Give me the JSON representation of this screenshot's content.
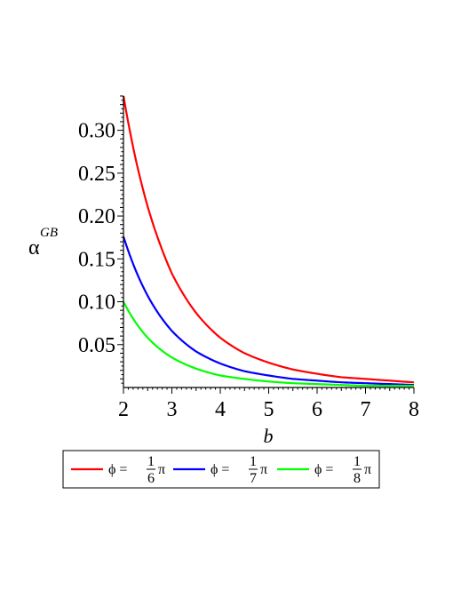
{
  "chart_data": {
    "type": "line",
    "xlabel": "b",
    "ylabel": "α",
    "ylabel_superscript": "GB",
    "xlim": [
      2,
      8
    ],
    "ylim": [
      0,
      0.34
    ],
    "x_ticks": [
      2,
      3,
      4,
      5,
      6,
      7,
      8
    ],
    "x_tick_labels": [
      "2",
      "3",
      "4",
      "5",
      "6",
      "7",
      "8"
    ],
    "y_ticks": [
      0.05,
      0.1,
      0.15,
      0.2,
      0.25,
      0.3
    ],
    "y_tick_labels": [
      "0.05",
      "0.10",
      "0.15",
      "0.20",
      "0.25",
      "0.30"
    ],
    "grid": false,
    "legend_position": "bottom",
    "series": [
      {
        "name": "ϕ = 1/6 π",
        "legend": {
          "lhs": "ϕ =",
          "num": "1",
          "den": "6",
          "rhs": "π"
        },
        "color": "#ff0000",
        "x": [
          2.0,
          2.25,
          2.5,
          2.75,
          3.0,
          3.5,
          4.0,
          4.5,
          5.0,
          5.5,
          6.0,
          6.5,
          7.0,
          7.5,
          8.0
        ],
        "y": [
          0.34,
          0.267,
          0.211,
          0.168,
          0.133,
          0.087,
          0.058,
          0.04,
          0.029,
          0.021,
          0.016,
          0.012,
          0.01,
          0.008,
          0.006
        ]
      },
      {
        "name": "ϕ = 1/7 π",
        "legend": {
          "lhs": "ϕ =",
          "num": "1",
          "den": "7",
          "rhs": "π"
        },
        "color": "#0000ff",
        "x": [
          2.0,
          2.25,
          2.5,
          2.75,
          3.0,
          3.5,
          4.0,
          4.5,
          5.0,
          5.5,
          6.0,
          6.5,
          7.0,
          7.5,
          8.0
        ],
        "y": [
          0.176,
          0.137,
          0.107,
          0.084,
          0.066,
          0.042,
          0.028,
          0.019,
          0.014,
          0.01,
          0.008,
          0.006,
          0.005,
          0.004,
          0.003
        ]
      },
      {
        "name": "ϕ = 1/8 π",
        "legend": {
          "lhs": "ϕ =",
          "num": "1",
          "den": "8",
          "rhs": "π"
        },
        "color": "#00ff00",
        "x": [
          2.0,
          2.25,
          2.5,
          2.75,
          3.0,
          3.5,
          4.0,
          4.5,
          5.0,
          5.5,
          6.0,
          6.5,
          7.0,
          7.5,
          8.0
        ],
        "y": [
          0.1,
          0.076,
          0.058,
          0.045,
          0.035,
          0.022,
          0.014,
          0.01,
          0.007,
          0.005,
          0.004,
          0.003,
          0.002,
          0.002,
          0.002
        ]
      }
    ]
  }
}
